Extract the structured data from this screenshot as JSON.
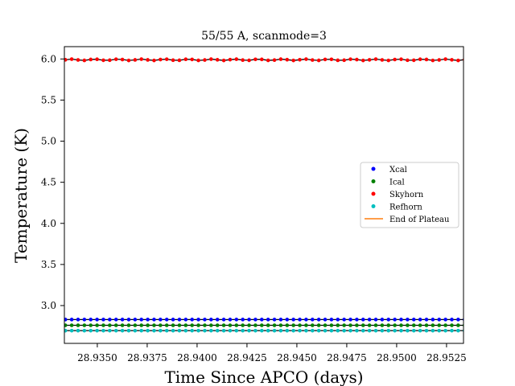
{
  "chart_data": {
    "type": "scatter",
    "title": "55/55 A, scanmode=3",
    "xlabel": "Time Since APCO (days)",
    "ylabel": "Temperature (K)",
    "xlim": [
      28.93335,
      28.95335
    ],
    "ylim": [
      2.54,
      6.15
    ],
    "xticks": [
      "28.9350",
      "28.9375",
      "28.9400",
      "28.9425",
      "28.9450",
      "28.9475",
      "28.9500",
      "28.9525"
    ],
    "xtick_values": [
      28.935,
      28.9375,
      28.94,
      28.9425,
      28.945,
      28.9475,
      28.95,
      28.9525
    ],
    "yticks": [
      "3.0",
      "3.5",
      "4.0",
      "4.5",
      "5.0",
      "5.5",
      "6.0"
    ],
    "ytick_values": [
      3.0,
      3.5,
      4.0,
      4.5,
      5.0,
      5.5,
      6.0
    ],
    "grid": false,
    "legend_position": "center-right",
    "x": {
      "start": 28.9334,
      "end": 28.9534,
      "count": 64
    },
    "series": [
      {
        "name": "Xcal",
        "marker": "dot",
        "color": "#0000ff",
        "y": 2.83,
        "jitter": 0.0
      },
      {
        "name": "Ical",
        "marker": "dot",
        "color": "#008000",
        "y": 2.76,
        "jitter": 0.0
      },
      {
        "name": "Skyhorn",
        "marker": "dot",
        "color": "#ff0000",
        "y": 5.99,
        "jitter": 0.008
      },
      {
        "name": "Refhorn",
        "marker": "dot",
        "color": "#00bfbf",
        "y": 2.695,
        "jitter": 0.0
      },
      {
        "name": "End of Plateau",
        "marker": "line",
        "color": "#ff7f0e"
      }
    ],
    "black_trace_color": "#000000"
  }
}
